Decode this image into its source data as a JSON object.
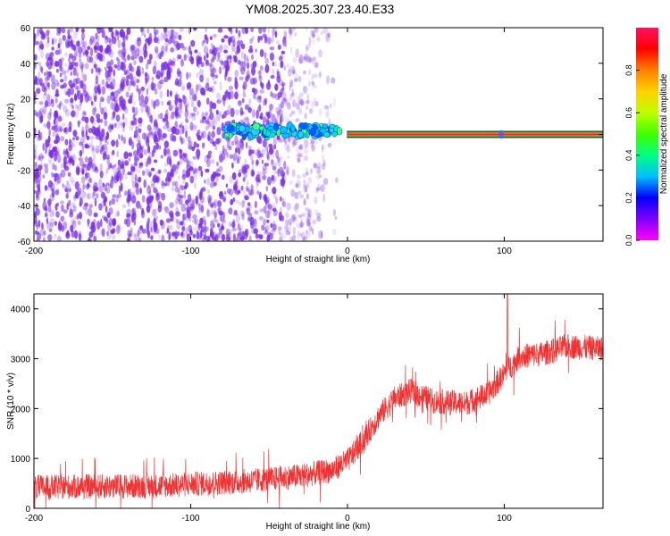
{
  "figure_title": "YM08.2025.307.23.40.E33",
  "chart_data": [
    {
      "type": "heatmap",
      "xlabel": "Height of straight line (km)",
      "ylabel": "Frequency (Hz)",
      "xlim": [
        -200,
        163
      ],
      "ylim": [
        -60,
        60
      ],
      "xticks": [
        -200,
        -100,
        0,
        100
      ],
      "yticks": [
        -60,
        -40,
        -20,
        0,
        20,
        40,
        60
      ],
      "colorbar": {
        "label": "Normalized spectral amplitude",
        "range": [
          0,
          1
        ],
        "ticks": [
          0.0,
          0.2,
          0.4,
          0.6,
          0.8
        ],
        "colormap": [
          "#ff00ff",
          "#8000ff",
          "#0000ff",
          "#00c0ff",
          "#00ff80",
          "#40ff00",
          "#c0ff00",
          "#ffd000",
          "#ff8000",
          "#ff0000",
          "#ff1060"
        ]
      },
      "features": {
        "noise_region_x": [
          -200,
          -5
        ],
        "noise_dense_until_x": -40,
        "noise_color": "#7a2ee6",
        "blob_band_x": [
          -78,
          -5
        ],
        "blob_band_freq": 2,
        "line_x": [
          0,
          163
        ],
        "line_freq": 0,
        "line_amplitude": 0.95,
        "line_marker_x": 98
      }
    },
    {
      "type": "line",
      "xlabel": "Height of straight line (km)",
      "ylabel": "SNR (10 * v/v)",
      "xlim": [
        -200,
        163
      ],
      "ylim": [
        0,
        4300
      ],
      "xticks": [
        -200,
        -100,
        0,
        100
      ],
      "yticks": [
        0,
        1000,
        2000,
        3000,
        4000
      ],
      "color": "#f03232",
      "trend_x": [
        -200,
        -120,
        -60,
        -30,
        -10,
        0,
        10,
        20,
        30,
        40,
        55,
        75,
        90,
        100,
        110,
        125,
        140,
        163
      ],
      "trend_y": [
        420,
        450,
        550,
        650,
        760,
        950,
        1350,
        1850,
        2200,
        2350,
        2150,
        2100,
        2300,
        2700,
        3050,
        3100,
        3250,
        3200
      ],
      "noise_amplitude": 250,
      "max_spike_y": 4300
    }
  ]
}
